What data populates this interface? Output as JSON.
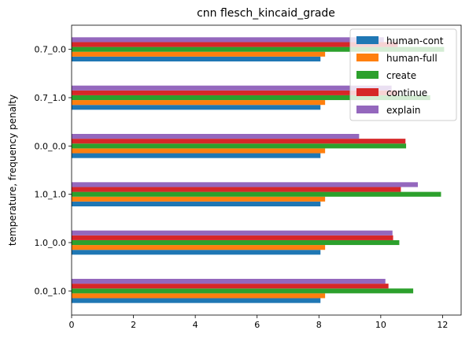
{
  "chart_data": {
    "type": "bar",
    "orientation": "horizontal",
    "title": "cnn flesch_kincaid_grade",
    "xlabel": "",
    "ylabel": "temperature, frequency penalty",
    "xlim": [
      0,
      12.6
    ],
    "xticks": [
      0,
      2,
      4,
      6,
      8,
      10,
      12
    ],
    "categories": [
      "0.0_1.0",
      "1.0_0.0",
      "1.0_1.0",
      "0.0_0.0",
      "0.7_1.0",
      "0.7_0.0"
    ],
    "legend_position": "top-right",
    "grid": false,
    "series": [
      {
        "name": "human-cont",
        "color": "#1f77b4",
        "values": [
          8.05,
          8.05,
          8.05,
          8.05,
          8.05,
          8.05
        ]
      },
      {
        "name": "human-full",
        "color": "#ff7f0e",
        "values": [
          8.2,
          8.2,
          8.2,
          8.2,
          8.2,
          8.2
        ]
      },
      {
        "name": "create",
        "color": "#2ca02c",
        "values": [
          11.05,
          10.6,
          11.95,
          10.82,
          11.6,
          12.05
        ]
      },
      {
        "name": "continue",
        "color": "#d62728",
        "values": [
          10.25,
          10.4,
          10.65,
          10.8,
          10.55,
          10.55
        ]
      },
      {
        "name": "explain",
        "color": "#9467bd",
        "values": [
          10.15,
          10.38,
          11.2,
          9.3,
          10.35,
          10.1
        ]
      }
    ]
  }
}
